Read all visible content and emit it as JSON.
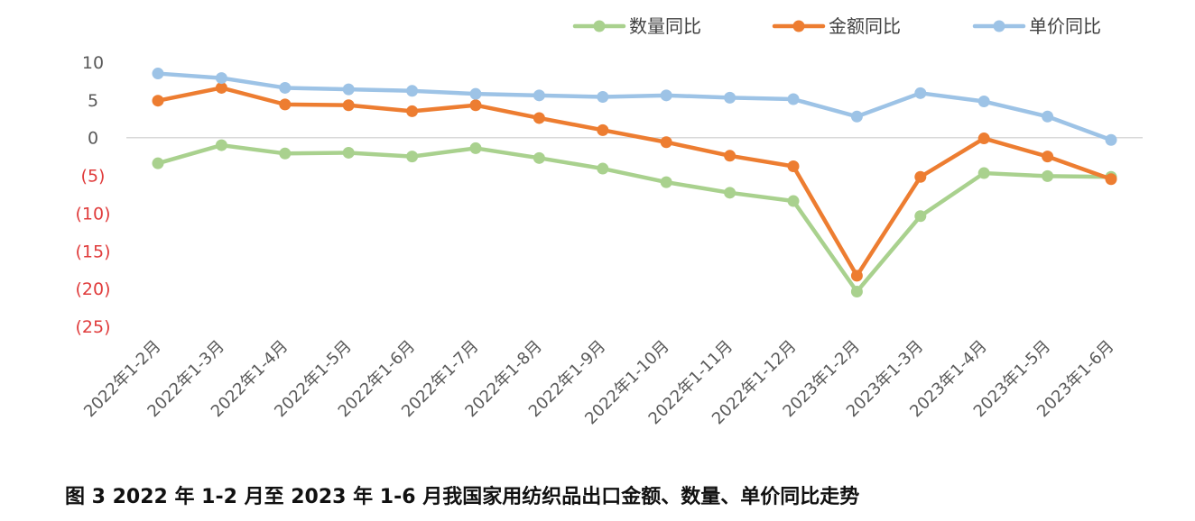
{
  "chart_data": {
    "type": "line",
    "title": "",
    "caption": "图 3 2022 年 1-2 月至 2023 年 1-6 月我国家用纺织品出口金额、数量、单价同比走势",
    "xlabel": "",
    "ylabel": "",
    "ylim": [
      -25,
      10
    ],
    "yticks": [
      10,
      5,
      0,
      -5,
      -10,
      -15,
      -20,
      -25
    ],
    "ytick_labels": [
      "10",
      "5",
      "0",
      "(5)",
      "(10)",
      "(15)",
      "(20)",
      "(25)"
    ],
    "grid": false,
    "legend_position": "top-right",
    "categories": [
      "2022年1-2月",
      "2022年1-3月",
      "2022年1-4月",
      "2022年1-5月",
      "2022年1-6月",
      "2022年1-7月",
      "2022年1-8月",
      "2022年1-9月",
      "2022年1-10月",
      "2022年1-11月",
      "2022年1-12月",
      "2023年1-2月",
      "2023年1-3月",
      "2023年1-4月",
      "2023年1-5月",
      "2023年1-6月"
    ],
    "series": [
      {
        "name": "数量同比",
        "color": "#a9d18e",
        "values": [
          -3.4,
          -1.0,
          -2.1,
          -2.0,
          -2.5,
          -1.4,
          -2.7,
          -4.1,
          -5.9,
          -7.3,
          -8.4,
          -20.4,
          -10.4,
          -4.7,
          -5.1,
          -5.2
        ]
      },
      {
        "name": "金额同比",
        "color": "#ed7d31",
        "values": [
          4.9,
          6.6,
          4.4,
          4.3,
          3.5,
          4.3,
          2.6,
          1.0,
          -0.6,
          -2.4,
          -3.8,
          -18.3,
          -5.2,
          -0.1,
          -2.5,
          -5.5
        ]
      },
      {
        "name": "单价同比",
        "color": "#9dc3e6",
        "values": [
          8.5,
          7.9,
          6.6,
          6.4,
          6.2,
          5.8,
          5.6,
          5.4,
          5.6,
          5.3,
          5.1,
          2.8,
          5.9,
          4.8,
          2.8,
          -0.3
        ]
      }
    ],
    "colors": {
      "axis_line": "#d9d9d9",
      "positive_tick": "#595959",
      "negative_tick": "#e03c3c"
    }
  }
}
